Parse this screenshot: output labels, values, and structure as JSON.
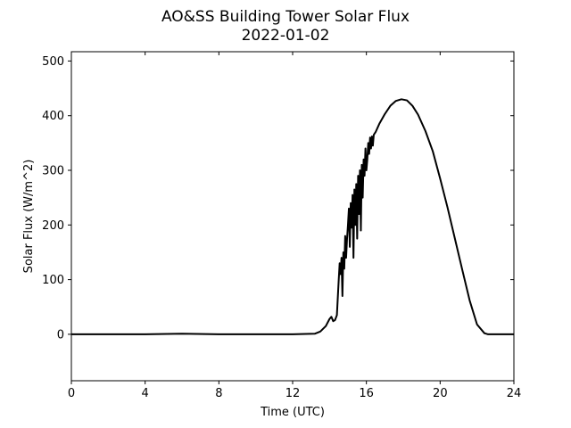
{
  "chart_data": {
    "type": "line",
    "title": "AO&SS Building Tower Solar Flux",
    "subtitle": "2022-01-02",
    "xlabel": "Time (UTC)",
    "ylabel": "Solar Flux (W/m^2)",
    "xlim": [
      0,
      24
    ],
    "ylim": [
      -85,
      517
    ],
    "xticks": [
      0,
      4,
      8,
      12,
      16,
      20,
      24
    ],
    "yticks": [
      0,
      100,
      200,
      300,
      400,
      500
    ],
    "grid": false,
    "legend": "none",
    "line_color": "#000000",
    "series": [
      {
        "x": [
          0,
          2,
          4,
          6,
          8,
          10,
          12,
          13.2,
          13.5,
          13.8,
          14.0,
          14.1,
          14.2,
          14.3,
          14.4,
          14.5,
          14.55,
          14.6,
          14.65,
          14.7,
          14.75,
          14.8,
          14.85,
          14.9,
          14.95,
          15.0,
          15.05,
          15.1,
          15.15,
          15.2,
          15.25,
          15.3,
          15.35,
          15.4,
          15.45,
          15.5,
          15.55,
          15.6,
          15.65,
          15.7,
          15.75,
          15.8,
          15.85,
          15.9,
          15.95,
          16.0,
          16.05,
          16.1,
          16.15,
          16.2,
          16.25,
          16.3,
          16.35,
          16.4,
          16.5,
          16.7,
          17.0,
          17.3,
          17.6,
          17.9,
          18.2,
          18.5,
          18.8,
          19.2,
          19.6,
          20.0,
          20.4,
          20.8,
          21.2,
          21.6,
          22.0,
          22.4,
          22.6,
          22.8,
          24
        ],
        "y": [
          0,
          0,
          0,
          1,
          0,
          0,
          0,
          1,
          5,
          15,
          28,
          32,
          24,
          26,
          35,
          100,
          130,
          110,
          140,
          70,
          150,
          120,
          180,
          140,
          175,
          200,
          230,
          160,
          240,
          195,
          255,
          140,
          265,
          200,
          275,
          175,
          290,
          220,
          300,
          190,
          310,
          250,
          320,
          290,
          340,
          300,
          320,
          350,
          330,
          360,
          340,
          362,
          345,
          365,
          370,
          385,
          403,
          418,
          427,
          430,
          428,
          418,
          402,
          372,
          335,
          285,
          232,
          175,
          118,
          62,
          18,
          2,
          0,
          0,
          0
        ]
      }
    ]
  }
}
